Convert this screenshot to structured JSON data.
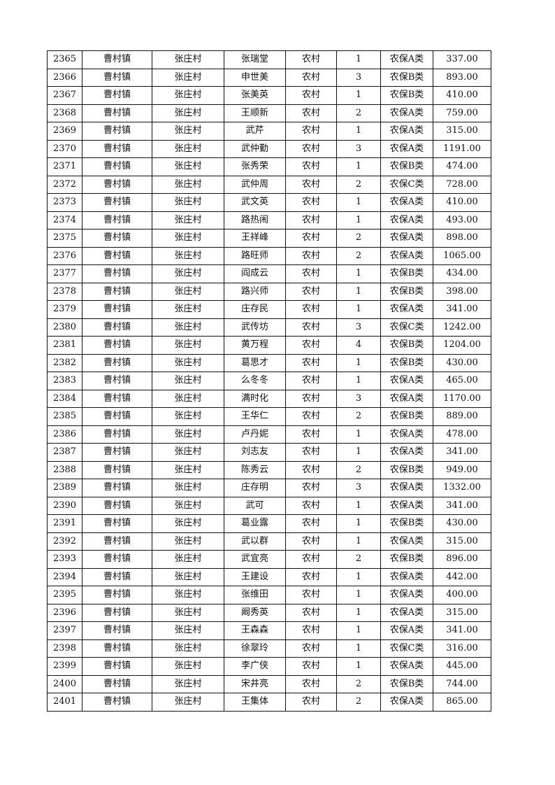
{
  "rows": [
    [
      "2365",
      "曹村镇",
      "张庄村",
      "张瑞堂",
      "农村",
      "1",
      "农保A类",
      "337.00"
    ],
    [
      "2366",
      "曹村镇",
      "张庄村",
      "申世美",
      "农村",
      "3",
      "农保B类",
      "893.00"
    ],
    [
      "2367",
      "曹村镇",
      "张庄村",
      "张美英",
      "农村",
      "1",
      "农保B类",
      "410.00"
    ],
    [
      "2368",
      "曹村镇",
      "张庄村",
      "王顺新",
      "农村",
      "2",
      "农保A类",
      "759.00"
    ],
    [
      "2369",
      "曹村镇",
      "张庄村",
      "武芹",
      "农村",
      "1",
      "农保A类",
      "315.00"
    ],
    [
      "2370",
      "曹村镇",
      "张庄村",
      "武仲勤",
      "农村",
      "3",
      "农保A类",
      "1191.00"
    ],
    [
      "2371",
      "曹村镇",
      "张庄村",
      "张秀荣",
      "农村",
      "1",
      "农保B类",
      "474.00"
    ],
    [
      "2372",
      "曹村镇",
      "张庄村",
      "武仲周",
      "农村",
      "2",
      "农保C类",
      "728.00"
    ],
    [
      "2373",
      "曹村镇",
      "张庄村",
      "武文英",
      "农村",
      "1",
      "农保A类",
      "410.00"
    ],
    [
      "2374",
      "曹村镇",
      "张庄村",
      "路热闹",
      "农村",
      "1",
      "农保A类",
      "493.00"
    ],
    [
      "2375",
      "曹村镇",
      "张庄村",
      "王祥峰",
      "农村",
      "2",
      "农保A类",
      "898.00"
    ],
    [
      "2376",
      "曹村镇",
      "张庄村",
      "路旺师",
      "农村",
      "2",
      "农保A类",
      "1065.00"
    ],
    [
      "2377",
      "曹村镇",
      "张庄村",
      "阎成云",
      "农村",
      "1",
      "农保B类",
      "434.00"
    ],
    [
      "2378",
      "曹村镇",
      "张庄村",
      "路兴师",
      "农村",
      "1",
      "农保B类",
      "398.00"
    ],
    [
      "2379",
      "曹村镇",
      "张庄村",
      "庄存民",
      "农村",
      "1",
      "农保A类",
      "341.00"
    ],
    [
      "2380",
      "曹村镇",
      "张庄村",
      "武传坊",
      "农村",
      "3",
      "农保C类",
      "1242.00"
    ],
    [
      "2381",
      "曹村镇",
      "张庄村",
      "黄万程",
      "农村",
      "4",
      "农保B类",
      "1204.00"
    ],
    [
      "2382",
      "曹村镇",
      "张庄村",
      "葛思才",
      "农村",
      "1",
      "农保B类",
      "430.00"
    ],
    [
      "2383",
      "曹村镇",
      "张庄村",
      "么冬冬",
      "农村",
      "1",
      "农保A类",
      "465.00"
    ],
    [
      "2384",
      "曹村镇",
      "张庄村",
      "满时化",
      "农村",
      "3",
      "农保A类",
      "1170.00"
    ],
    [
      "2385",
      "曹村镇",
      "张庄村",
      "王华仁",
      "农村",
      "2",
      "农保B类",
      "889.00"
    ],
    [
      "2386",
      "曹村镇",
      "张庄村",
      "卢丹妮",
      "农村",
      "1",
      "农保A类",
      "478.00"
    ],
    [
      "2387",
      "曹村镇",
      "张庄村",
      "刘志友",
      "农村",
      "1",
      "农保A类",
      "341.00"
    ],
    [
      "2388",
      "曹村镇",
      "张庄村",
      "陈秀云",
      "农村",
      "2",
      "农保B类",
      "949.00"
    ],
    [
      "2389",
      "曹村镇",
      "张庄村",
      "庄存明",
      "农村",
      "3",
      "农保A类",
      "1332.00"
    ],
    [
      "2390",
      "曹村镇",
      "张庄村",
      "武可",
      "农村",
      "1",
      "农保A类",
      "341.00"
    ],
    [
      "2391",
      "曹村镇",
      "张庄村",
      "葛业露",
      "农村",
      "1",
      "农保B类",
      "430.00"
    ],
    [
      "2392",
      "曹村镇",
      "张庄村",
      "武以群",
      "农村",
      "1",
      "农保A类",
      "315.00"
    ],
    [
      "2393",
      "曹村镇",
      "张庄村",
      "武宜亮",
      "农村",
      "2",
      "农保B类",
      "896.00"
    ],
    [
      "2394",
      "曹村镇",
      "张庄村",
      "王建设",
      "农村",
      "1",
      "农保A类",
      "442.00"
    ],
    [
      "2395",
      "曹村镇",
      "张庄村",
      "张维田",
      "农村",
      "1",
      "农保A类",
      "400.00"
    ],
    [
      "2396",
      "曹村镇",
      "张庄村",
      "阚秀英",
      "农村",
      "1",
      "农保A类",
      "315.00"
    ],
    [
      "2397",
      "曹村镇",
      "张庄村",
      "王森森",
      "农村",
      "1",
      "农保A类",
      "341.00"
    ],
    [
      "2398",
      "曹村镇",
      "张庄村",
      "徐翠玲",
      "农村",
      "1",
      "农保C类",
      "316.00"
    ],
    [
      "2399",
      "曹村镇",
      "张庄村",
      "李广侠",
      "农村",
      "1",
      "农保A类",
      "445.00"
    ],
    [
      "2400",
      "曹村镇",
      "张庄村",
      "宋井亮",
      "农村",
      "2",
      "农保B类",
      "744.00"
    ],
    [
      "2401",
      "曹村镇",
      "张庄村",
      "王集体",
      "农村",
      "2",
      "农保A类",
      "865.00"
    ]
  ]
}
